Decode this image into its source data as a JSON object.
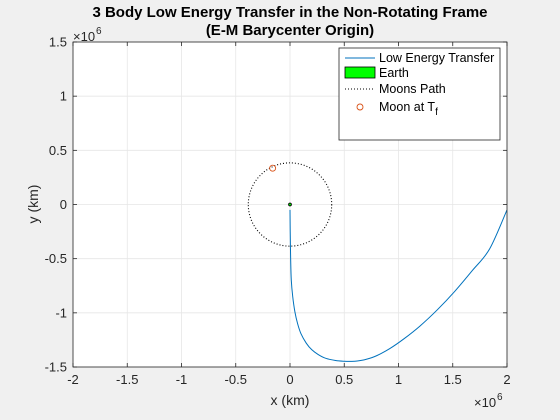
{
  "chart_data": {
    "type": "line",
    "title_lines": [
      "3 Body Low Energy Transfer in the Non-Rotating Frame",
      "(E-M Barycenter Origin)"
    ],
    "xlabel": "x (km)",
    "ylabel": "y (km)",
    "xlim": [
      -2000000,
      2000000
    ],
    "ylim": [
      -1500000,
      1500000
    ],
    "x_exponent_label": "×10",
    "x_exponent_power": "6",
    "y_exponent_label": "×10",
    "y_exponent_power": "6",
    "x_ticks": [
      -2000000,
      -1500000,
      -1000000,
      -500000,
      0,
      500000,
      1000000,
      1500000,
      2000000
    ],
    "x_tick_labels": [
      "-2",
      "-1.5",
      "-1",
      "-0.5",
      "0",
      "0.5",
      "1",
      "1.5",
      "2"
    ],
    "y_ticks": [
      -1500000,
      -1000000,
      -500000,
      0,
      500000,
      1000000,
      1500000
    ],
    "y_tick_labels": [
      "-1.5",
      "-1",
      "-0.5",
      "0",
      "0.5",
      "1",
      "1.5"
    ],
    "grid": true,
    "legend_position": "top-right",
    "series": [
      {
        "name": "Low Energy Transfer",
        "style": "line",
        "color": "#0072BD",
        "x": [
          0,
          2000,
          6000,
          12000,
          25000,
          45000,
          70000,
          100000,
          150000,
          200000,
          260000,
          330000,
          420000,
          500000,
          560000,
          620000,
          700000,
          800000,
          920000,
          1050000,
          1200000,
          1360000,
          1520000,
          1680000,
          1840000,
          2000000
        ],
        "y": [
          -50000,
          -250000,
          -500000,
          -700000,
          -850000,
          -990000,
          -1100000,
          -1190000,
          -1280000,
          -1340000,
          -1385000,
          -1420000,
          -1440000,
          -1447000,
          -1448000,
          -1445000,
          -1430000,
          -1395000,
          -1330000,
          -1240000,
          -1120000,
          -970000,
          -800000,
          -610000,
          -410000,
          -50000
        ]
      },
      {
        "name": "Earth",
        "style": "patch",
        "color": "#00FF00"
      },
      {
        "name": "Moons Path",
        "style": "dotted",
        "color": "#000000",
        "radius": 384400
      },
      {
        "name": "Moon at T",
        "name_subscript": "f",
        "style": "marker",
        "color": "#D95319",
        "x": -160000,
        "y": 335000
      }
    ]
  }
}
